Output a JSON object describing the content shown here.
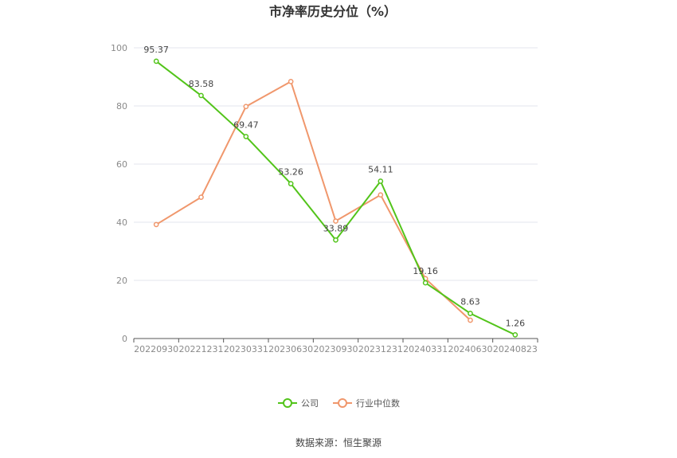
{
  "chart_data": {
    "type": "line",
    "title": "市净率历史分位（%）",
    "xlabel": "",
    "ylabel": "",
    "x": [
      "20220930",
      "20221231",
      "20230331",
      "20230630",
      "20230930",
      "20231231",
      "20240331",
      "20240630",
      "20240823"
    ],
    "ylim": [
      0,
      100
    ],
    "yticks": [
      0,
      20,
      40,
      60,
      80,
      100
    ],
    "grid": true,
    "legend": "bottom",
    "series": [
      {
        "name": "公司",
        "color": "#52c41a",
        "values": [
          95.37,
          83.58,
          69.47,
          53.26,
          33.89,
          54.11,
          19.16,
          8.63,
          1.26
        ],
        "labels": [
          "95.37",
          "83.58",
          "69.47",
          "53.26",
          "33.89",
          "54.11",
          "19.16",
          "8.63",
          "1.26"
        ]
      },
      {
        "name": "行业中位数",
        "color": "#f0976c",
        "values": [
          39.2,
          48.6,
          79.8,
          88.4,
          40.4,
          49.4,
          20.6,
          6.3,
          null
        ]
      }
    ]
  },
  "source": "数据来源：恒生聚源"
}
